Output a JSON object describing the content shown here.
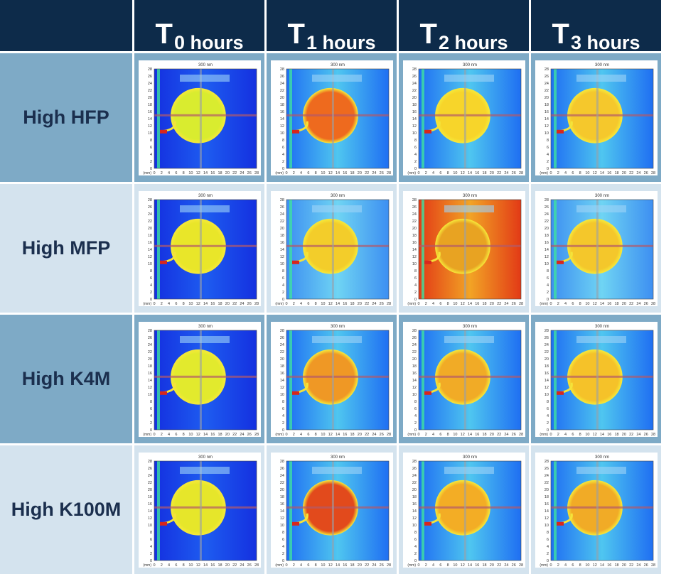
{
  "header": {
    "columns": [
      {
        "t": "T",
        "sub": "0 hours"
      },
      {
        "t": "T",
        "sub": "1 hours"
      },
      {
        "t": "T",
        "sub": "2 hours"
      },
      {
        "t": "T",
        "sub": "3 hours"
      }
    ]
  },
  "rows": [
    {
      "label": "High HFP"
    },
    {
      "label": "High MFP"
    },
    {
      "label": "High K4M"
    },
    {
      "label": "High K100M"
    }
  ],
  "image_panel": {
    "title": "300 nm",
    "axis_unit": "(mm)",
    "ticks": [
      "0",
      "2",
      "4",
      "6",
      "8",
      "10",
      "12",
      "14",
      "16",
      "18",
      "20",
      "22",
      "24",
      "26",
      "28"
    ],
    "yticks": [
      "28",
      "26",
      "24",
      "22",
      "20",
      "18",
      "16",
      "14",
      "12",
      "10",
      "8",
      "6",
      "4",
      "2",
      "0"
    ]
  },
  "colors": {
    "header_bg": "#0d2b4a",
    "row_dark": "#7eaac6",
    "row_light": "#d4e3ee",
    "label_text": "#1b2f4e"
  },
  "cells": [
    [
      {
        "bg": "deep-blue",
        "tablet": "yellow",
        "tint": "#d9ec2f"
      },
      {
        "bg": "cyan-blue",
        "tablet": "orange",
        "tint": "#ee6a1e"
      },
      {
        "bg": "cyan-blue",
        "tablet": "yellow",
        "tint": "#f7d52a"
      },
      {
        "bg": "cyan-blue",
        "tablet": "yellow",
        "tint": "#f5c82c"
      }
    ],
    [
      {
        "bg": "deep-blue",
        "tablet": "yellow",
        "tint": "#e9e629"
      },
      {
        "bg": "light-blue",
        "tablet": "yellow",
        "tint": "#f3cd2a"
      },
      {
        "bg": "red",
        "tablet": "orange",
        "tint": "#e8a322"
      },
      {
        "bg": "light-blue",
        "tablet": "yellow",
        "tint": "#f4c72b"
      }
    ],
    [
      {
        "bg": "deep-blue",
        "tablet": "yellow",
        "tint": "#e2ea2d"
      },
      {
        "bg": "cyan-blue",
        "tablet": "orange",
        "tint": "#ef9825"
      },
      {
        "bg": "cyan-blue",
        "tablet": "orange",
        "tint": "#f1ab26"
      },
      {
        "bg": "cyan-blue",
        "tablet": "yellow",
        "tint": "#f5c229"
      }
    ],
    [
      {
        "bg": "deep-blue",
        "tablet": "yellow",
        "tint": "#e6e62a"
      },
      {
        "bg": "cyan-blue",
        "tablet": "red",
        "tint": "#e24a1c"
      },
      {
        "bg": "cyan-blue",
        "tablet": "orange",
        "tint": "#f3ad25"
      },
      {
        "bg": "cyan-blue",
        "tablet": "orange",
        "tint": "#f1ab26"
      }
    ]
  ]
}
